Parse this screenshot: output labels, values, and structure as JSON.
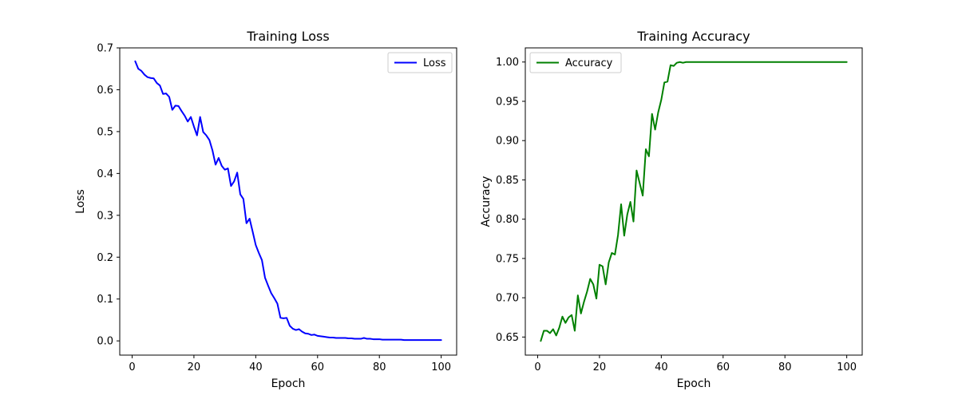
{
  "chart_data": [
    {
      "type": "line",
      "title": "Training Loss",
      "xlabel": "Epoch",
      "ylabel": "Loss",
      "xlim": [
        -4,
        105
      ],
      "ylim": [
        -0.034,
        0.7
      ],
      "xticks": [
        0,
        20,
        40,
        60,
        80,
        100
      ],
      "yticks": [
        0.0,
        0.1,
        0.2,
        0.3,
        0.4,
        0.5,
        0.6,
        0.7
      ],
      "ytick_labels": [
        "0.0",
        "0.1",
        "0.2",
        "0.3",
        "0.4",
        "0.5",
        "0.6",
        "0.7"
      ],
      "legend_position": "top-right",
      "series": [
        {
          "name": "Loss",
          "color": "#0000ff",
          "x": [
            1,
            2,
            3,
            4,
            5,
            6,
            7,
            8,
            9,
            10,
            11,
            12,
            13,
            14,
            15,
            16,
            17,
            18,
            19,
            20,
            21,
            22,
            23,
            24,
            25,
            26,
            27,
            28,
            29,
            30,
            31,
            32,
            33,
            34,
            35,
            36,
            37,
            38,
            39,
            40,
            41,
            42,
            43,
            44,
            45,
            46,
            47,
            48,
            49,
            50,
            51,
            52,
            53,
            54,
            55,
            56,
            57,
            58,
            59,
            60,
            61,
            62,
            63,
            64,
            65,
            66,
            67,
            68,
            69,
            70,
            71,
            72,
            73,
            74,
            75,
            76,
            77,
            78,
            79,
            80,
            81,
            82,
            83,
            84,
            85,
            86,
            87,
            88,
            89,
            90,
            91,
            92,
            93,
            94,
            95,
            96,
            97,
            98,
            99,
            100
          ],
          "values": [
            0.668,
            0.65,
            0.645,
            0.636,
            0.63,
            0.628,
            0.627,
            0.616,
            0.61,
            0.59,
            0.591,
            0.583,
            0.552,
            0.562,
            0.561,
            0.549,
            0.538,
            0.524,
            0.535,
            0.512,
            0.491,
            0.535,
            0.499,
            0.491,
            0.48,
            0.455,
            0.421,
            0.437,
            0.418,
            0.409,
            0.412,
            0.37,
            0.381,
            0.402,
            0.35,
            0.339,
            0.281,
            0.292,
            0.261,
            0.229,
            0.21,
            0.193,
            0.151,
            0.132,
            0.114,
            0.102,
            0.089,
            0.055,
            0.054,
            0.055,
            0.036,
            0.029,
            0.026,
            0.028,
            0.022,
            0.018,
            0.017,
            0.014,
            0.015,
            0.012,
            0.011,
            0.01,
            0.009,
            0.008,
            0.008,
            0.007,
            0.007,
            0.007,
            0.007,
            0.006,
            0.006,
            0.005,
            0.005,
            0.005,
            0.007,
            0.005,
            0.005,
            0.004,
            0.004,
            0.004,
            0.003,
            0.003,
            0.003,
            0.003,
            0.003,
            0.003,
            0.003,
            0.002,
            0.002,
            0.002,
            0.002,
            0.002,
            0.002,
            0.002,
            0.002,
            0.002,
            0.002,
            0.002,
            0.002,
            0.002
          ]
        }
      ]
    },
    {
      "type": "line",
      "title": "Training Accuracy",
      "xlabel": "Epoch",
      "ylabel": "Accuracy",
      "xlim": [
        -4,
        105
      ],
      "ylim": [
        0.627,
        1.018
      ],
      "xticks": [
        0,
        20,
        40,
        60,
        80,
        100
      ],
      "yticks": [
        0.65,
        0.7,
        0.75,
        0.8,
        0.85,
        0.9,
        0.95,
        1.0
      ],
      "ytick_labels": [
        "0.65",
        "0.70",
        "0.75",
        "0.80",
        "0.85",
        "0.90",
        "0.95",
        "1.00"
      ],
      "legend_position": "top-left",
      "series": [
        {
          "name": "Accuracy",
          "color": "#008000",
          "x": [
            1,
            2,
            3,
            4,
            5,
            6,
            7,
            8,
            9,
            10,
            11,
            12,
            13,
            14,
            15,
            16,
            17,
            18,
            19,
            20,
            21,
            22,
            23,
            24,
            25,
            26,
            27,
            28,
            29,
            30,
            31,
            32,
            33,
            34,
            35,
            36,
            37,
            38,
            39,
            40,
            41,
            42,
            43,
            44,
            45,
            46,
            47,
            48,
            49,
            50,
            51,
            52,
            53,
            54,
            55,
            56,
            57,
            58,
            59,
            60,
            61,
            62,
            63,
            64,
            65,
            66,
            67,
            68,
            69,
            70,
            71,
            72,
            73,
            74,
            75,
            76,
            77,
            78,
            79,
            80,
            81,
            82,
            83,
            84,
            85,
            86,
            87,
            88,
            89,
            90,
            91,
            92,
            93,
            94,
            95,
            96,
            97,
            98,
            99,
            100
          ],
          "values": [
            0.645,
            0.658,
            0.658,
            0.655,
            0.66,
            0.652,
            0.662,
            0.676,
            0.668,
            0.675,
            0.678,
            0.658,
            0.703,
            0.68,
            0.695,
            0.708,
            0.724,
            0.717,
            0.699,
            0.742,
            0.74,
            0.717,
            0.745,
            0.757,
            0.755,
            0.78,
            0.819,
            0.779,
            0.806,
            0.822,
            0.797,
            0.862,
            0.846,
            0.83,
            0.889,
            0.88,
            0.934,
            0.914,
            0.936,
            0.952,
            0.974,
            0.975,
            0.996,
            0.995,
            0.999,
            1.0,
            0.999,
            1.0,
            1.0,
            1.0,
            1.0,
            1.0,
            1.0,
            1.0,
            1.0,
            1.0,
            1.0,
            1.0,
            1.0,
            1.0,
            1.0,
            1.0,
            1.0,
            1.0,
            1.0,
            1.0,
            1.0,
            1.0,
            1.0,
            1.0,
            1.0,
            1.0,
            1.0,
            1.0,
            1.0,
            1.0,
            1.0,
            1.0,
            1.0,
            1.0,
            1.0,
            1.0,
            1.0,
            1.0,
            1.0,
            1.0,
            1.0,
            1.0,
            1.0,
            1.0,
            1.0,
            1.0,
            1.0,
            1.0,
            1.0,
            1.0,
            1.0,
            1.0,
            1.0,
            1.0
          ]
        }
      ]
    }
  ]
}
